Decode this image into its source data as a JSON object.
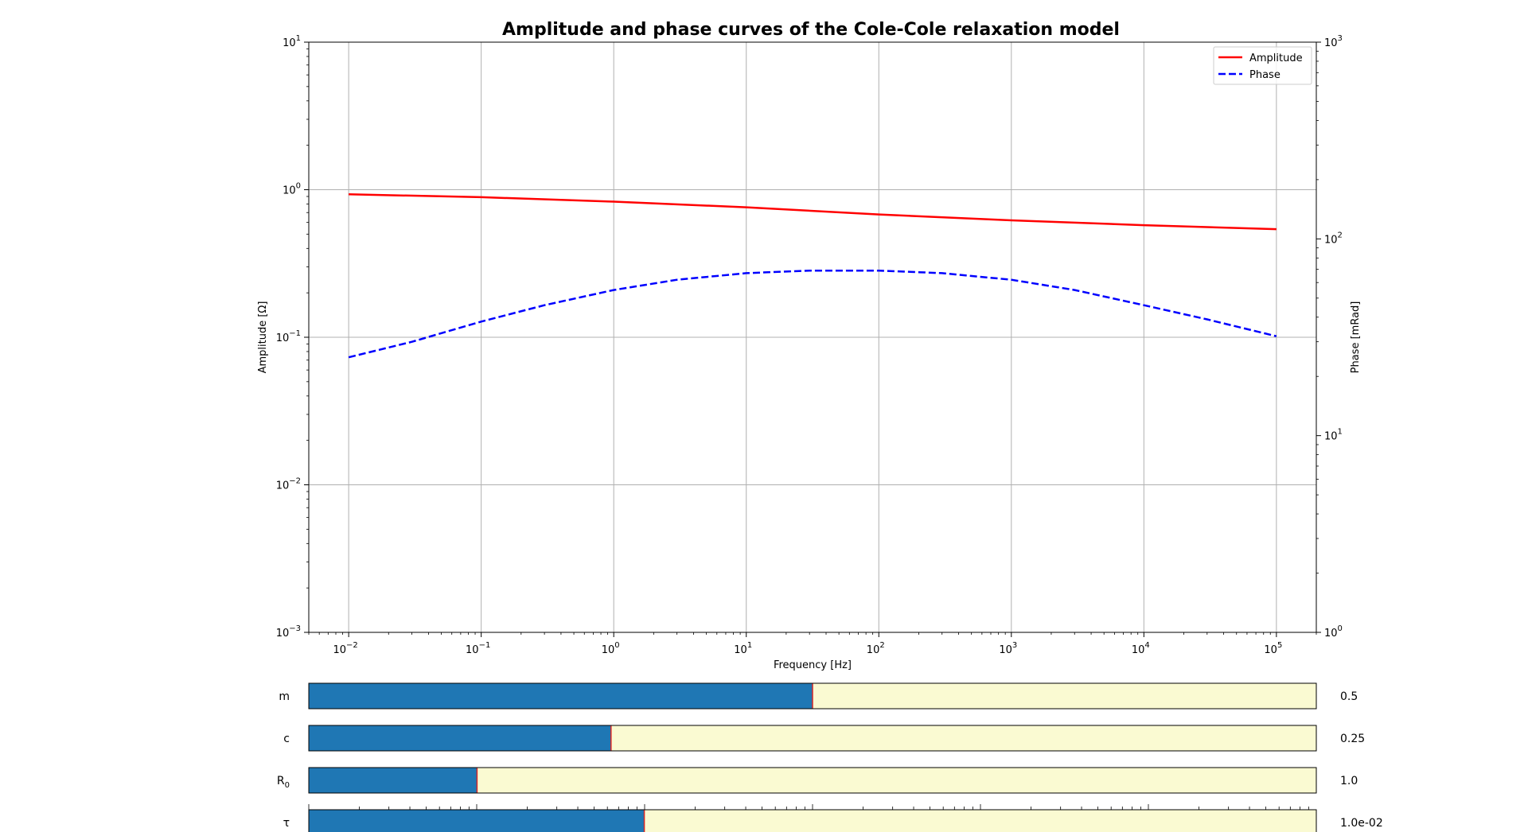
{
  "chart_data": {
    "type": "line",
    "title": "Amplitude and phase curves of the Cole-Cole relaxation model",
    "xlabel": "Frequency [Hz]",
    "ylabel_left": "Amplitude [Ω]",
    "ylabel_right": "Phase [mRad]",
    "xscale": "log",
    "yscale_left": "log",
    "yscale_right": "log",
    "xlim": [
      0.005,
      200000
    ],
    "ylim_left": [
      0.001,
      10
    ],
    "ylim_right": [
      1,
      1000
    ],
    "grid": true,
    "legend_position": "top-right",
    "x_ticks": [
      {
        "base": "10",
        "exp": "−2"
      },
      {
        "base": "10",
        "exp": "−1"
      },
      {
        "base": "10",
        "exp": "0"
      },
      {
        "base": "10",
        "exp": "1"
      },
      {
        "base": "10",
        "exp": "2"
      },
      {
        "base": "10",
        "exp": "3"
      },
      {
        "base": "10",
        "exp": "4"
      },
      {
        "base": "10",
        "exp": "5"
      }
    ],
    "y_left_ticks": [
      {
        "base": "10",
        "exp": "1"
      },
      {
        "base": "10",
        "exp": "0"
      },
      {
        "base": "10",
        "exp": "−1"
      },
      {
        "base": "10",
        "exp": "−2"
      },
      {
        "base": "10",
        "exp": "−3"
      }
    ],
    "y_right_ticks": [
      {
        "base": "10",
        "exp": "3"
      },
      {
        "base": "10",
        "exp": "2"
      },
      {
        "base": "10",
        "exp": "1"
      },
      {
        "base": "10",
        "exp": "0"
      }
    ],
    "series": [
      {
        "name": "Amplitude",
        "axis": "left",
        "color": "#ff0000",
        "dash": "solid",
        "x": [
          0.01,
          0.1,
          1,
          10,
          100,
          1000,
          10000,
          100000
        ],
        "y": [
          0.93,
          0.89,
          0.83,
          0.76,
          0.68,
          0.62,
          0.575,
          0.54
        ]
      },
      {
        "name": "Phase",
        "axis": "right",
        "color": "#0000ff",
        "dash": "dashed",
        "x": [
          0.01,
          0.03,
          0.1,
          0.3,
          1,
          3,
          10,
          30,
          100,
          300,
          1000,
          3000,
          10000,
          30000,
          100000
        ],
        "y": [
          25,
          30,
          38,
          46,
          55,
          62,
          67,
          69,
          69,
          67,
          62,
          55,
          46,
          39,
          32
        ]
      }
    ]
  },
  "sliders": [
    {
      "label": "m",
      "sub": "",
      "value_text": "0.5",
      "fraction": 0.5,
      "fill_color": "#1f77b4",
      "track_color": "#fafad2",
      "marker_color": "#d62728",
      "log_ticks": false
    },
    {
      "label": "c",
      "sub": "",
      "value_text": "0.25",
      "fraction": 0.3,
      "fill_color": "#1f77b4",
      "track_color": "#fafad2",
      "marker_color": "#d62728",
      "log_ticks": false
    },
    {
      "label": "R",
      "sub": "0",
      "value_text": "1.0",
      "fraction": 0.167,
      "fill_color": "#1f77b4",
      "track_color": "#fafad2",
      "marker_color": "#d62728",
      "log_ticks": false
    },
    {
      "label": "τ",
      "sub": "",
      "value_text": "1.0e-02",
      "fraction": 0.333,
      "fill_color": "#1f77b4",
      "track_color": "#fafad2",
      "marker_color": "#d62728",
      "log_ticks": true
    }
  ]
}
